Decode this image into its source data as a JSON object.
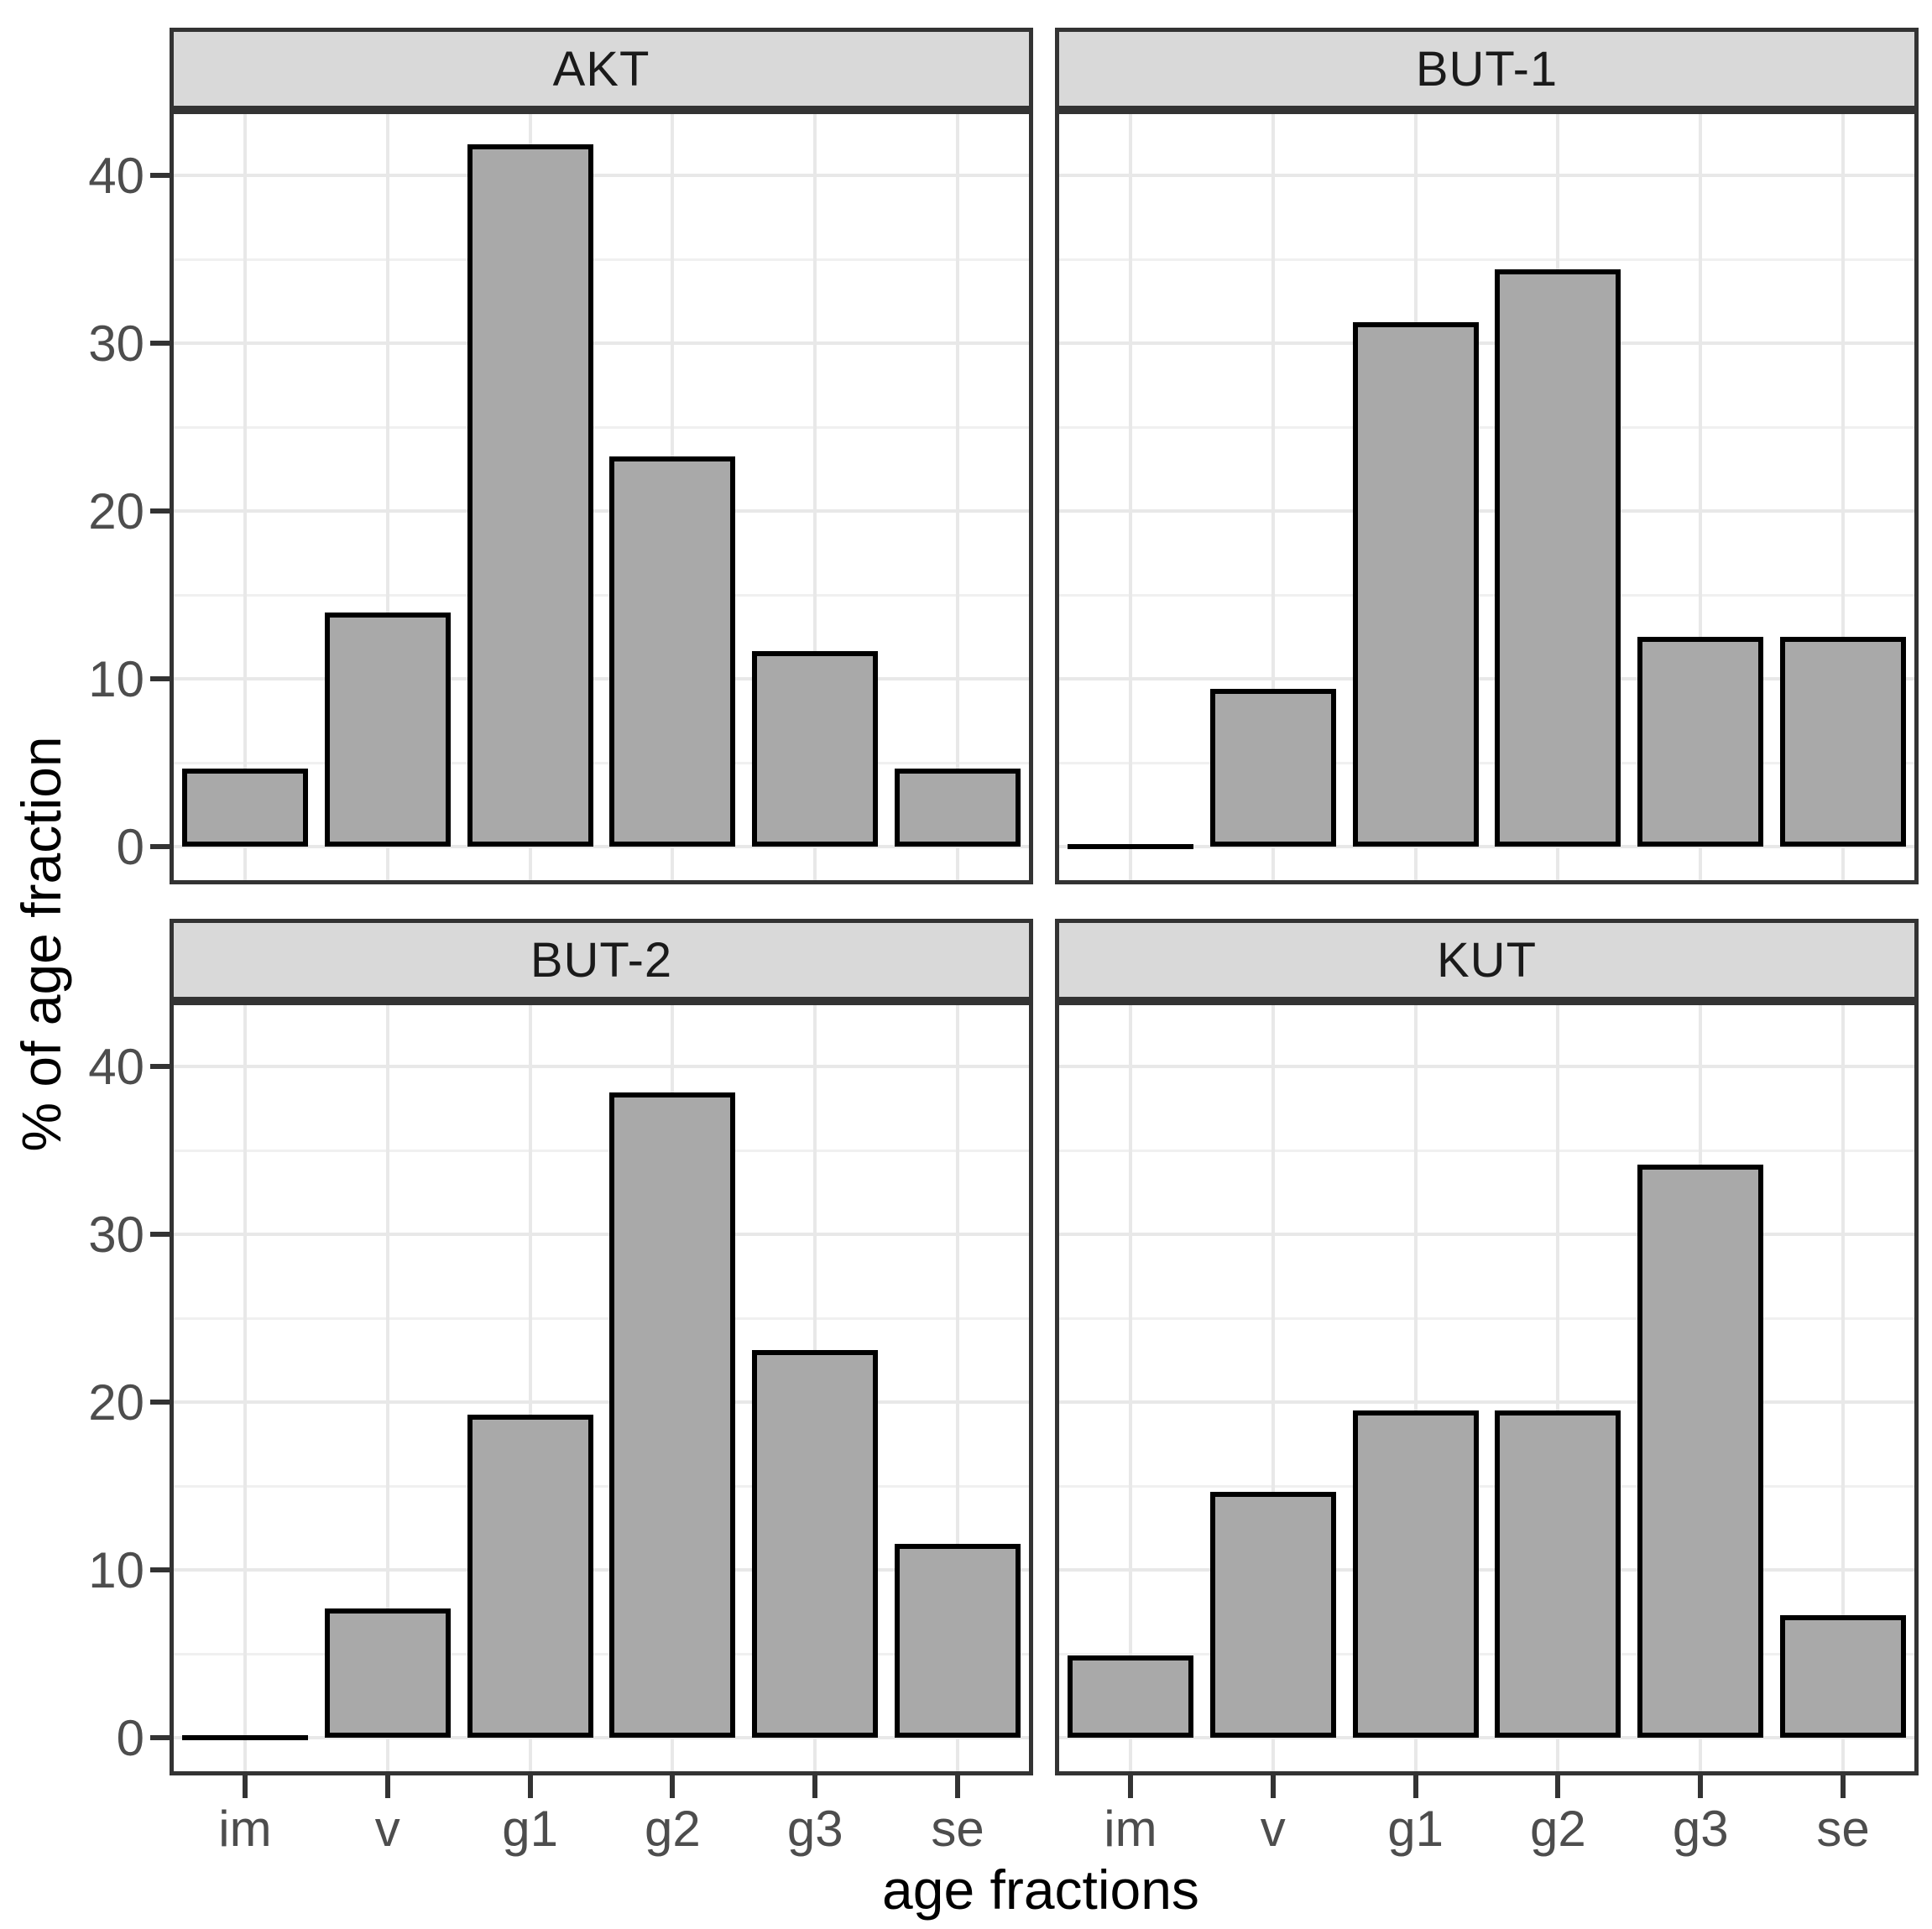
{
  "chart_data": {
    "type": "bar",
    "categories": [
      "im",
      "v",
      "g1",
      "g2",
      "g3",
      "se"
    ],
    "facets": [
      {
        "label": "AKT",
        "values": [
          4.65,
          13.95,
          41.86,
          23.26,
          11.63,
          4.65
        ]
      },
      {
        "label": "BUT-1",
        "values": [
          0,
          9.38,
          31.25,
          34.38,
          12.5,
          12.5
        ]
      },
      {
        "label": "BUT-2",
        "values": [
          0,
          7.69,
          19.23,
          38.46,
          23.08,
          11.54
        ]
      },
      {
        "label": "KUT",
        "values": [
          4.88,
          14.63,
          19.51,
          19.51,
          34.15,
          7.32
        ]
      }
    ],
    "xlabel": "age fractions",
    "ylabel": "% of age fraction",
    "ylim": [
      -2,
      43.65
    ],
    "y_major_ticks": [
      0,
      10,
      20,
      30,
      40
    ],
    "y_minor_ticks": [
      5,
      15,
      25,
      35
    ],
    "y_tick_labels": [
      "0",
      "10",
      "20",
      "30",
      "40"
    ],
    "grid": true,
    "legend": false,
    "facet_layout": "2x2",
    "colors": {
      "bar_fill": "#a9a9a9",
      "bar_stroke": "#000000",
      "strip_fill": "#d9d9d9",
      "panel_border": "#333333",
      "grid_major": "#e8e8e8",
      "grid_minor": "#f0f0f0",
      "tick_text": "#4d4d4d",
      "title_text": "#000000",
      "strip_text": "#1a1a1a",
      "panel_bg": "#ffffff"
    }
  }
}
